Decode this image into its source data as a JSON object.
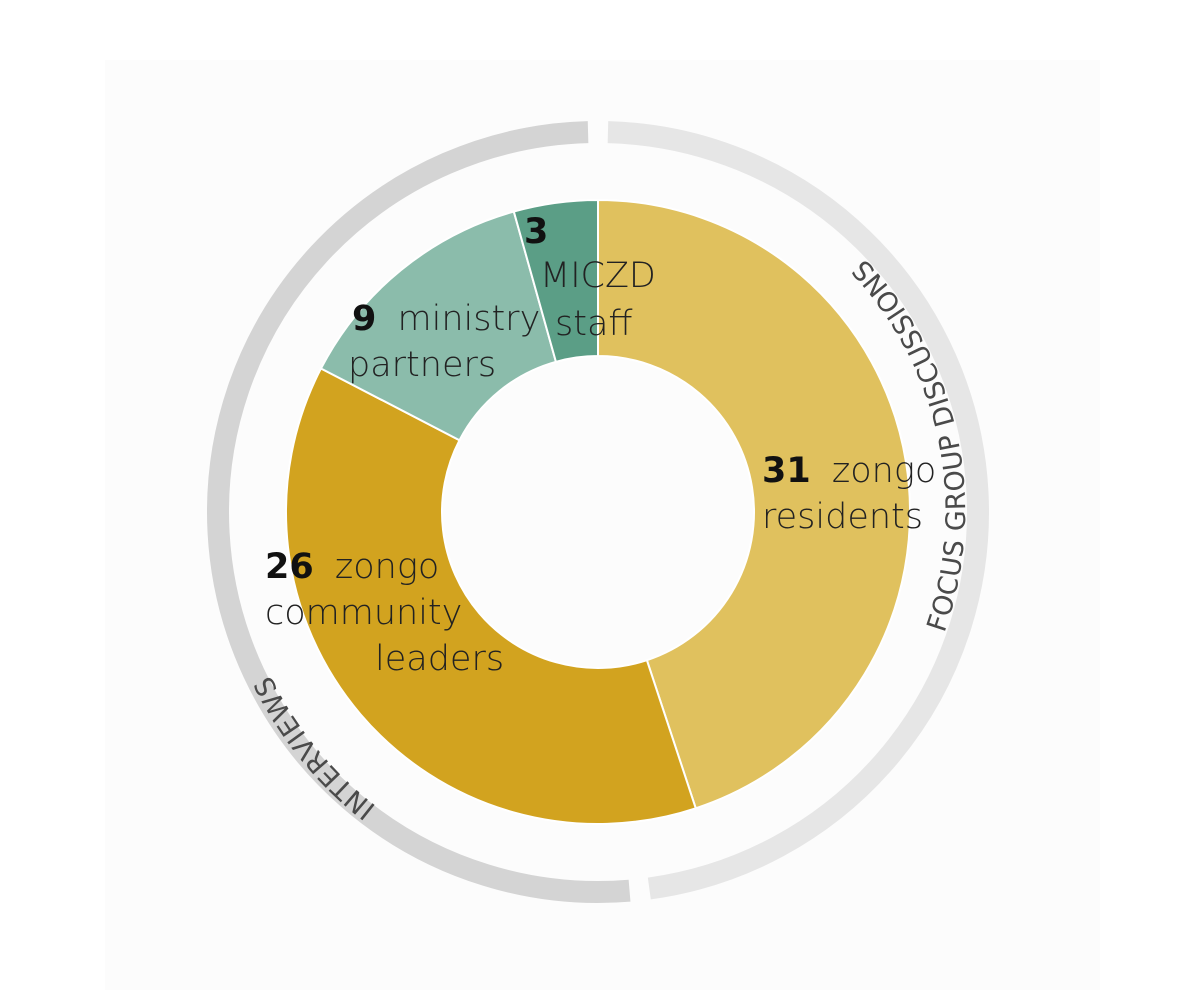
{
  "chart_data": {
    "type": "pie",
    "segments": [
      {
        "value": 31,
        "label_lines": [
          "zongo",
          "residents"
        ],
        "color": "#e0c15e"
      },
      {
        "value": 26,
        "label_lines": [
          "zongo",
          "community",
          "leaders"
        ],
        "color": "#d2a31f"
      },
      {
        "value": 9,
        "label_lines": [
          "ministry",
          "partners"
        ],
        "color": "#8bbcab"
      },
      {
        "value": 3,
        "label_lines": [
          "MICZD",
          "staff"
        ],
        "color": "#5b9e86"
      }
    ],
    "groups": [
      {
        "label": "FOCUS GROUP DISCUSSIONS",
        "color": "#e6e6e6"
      },
      {
        "label": "INTERVIEWS",
        "color": "#d4d4d4"
      }
    ]
  },
  "colors": {
    "panel_background": "#fcfcfc",
    "segment_border": "#ffffff",
    "text": "#222222"
  }
}
